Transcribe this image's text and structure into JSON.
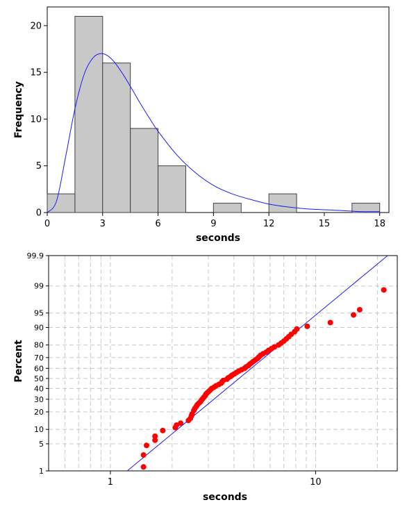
{
  "chart_data": [
    {
      "type": "bar",
      "subtype": "histogram",
      "xlabel": "seconds",
      "ylabel": "Frequency",
      "xlim": [
        0,
        18.5
      ],
      "ylim": [
        0,
        22
      ],
      "xticks": [
        "0",
        "3",
        "6",
        "9",
        "12",
        "15",
        "18"
      ],
      "yticks": [
        "0",
        "5",
        "10",
        "15",
        "20"
      ],
      "bins": [
        {
          "from": 0,
          "to": 1.5,
          "count": 2
        },
        {
          "from": 1.5,
          "to": 3,
          "count": 21
        },
        {
          "from": 3,
          "to": 4.5,
          "count": 16
        },
        {
          "from": 4.5,
          "to": 6,
          "count": 9
        },
        {
          "from": 6,
          "to": 7.5,
          "count": 5
        },
        {
          "from": 7.5,
          "to": 9,
          "count": 0
        },
        {
          "from": 9,
          "to": 10.5,
          "count": 1
        },
        {
          "from": 10.5,
          "to": 12,
          "count": 0
        },
        {
          "from": 12,
          "to": 13.5,
          "count": 2
        },
        {
          "from": 13.5,
          "to": 15,
          "count": 0
        },
        {
          "from": 15,
          "to": 16.5,
          "count": 0
        },
        {
          "from": 16.5,
          "to": 18,
          "count": 1
        }
      ],
      "fitted_curve": {
        "distribution": "lognormal",
        "curve_values": [
          [
            0,
            0
          ],
          [
            0.5,
            1.2
          ],
          [
            1,
            6
          ],
          [
            1.5,
            11.1
          ],
          [
            2,
            14.8
          ],
          [
            2.5,
            16.6
          ],
          [
            3,
            17
          ],
          [
            3.5,
            16.4
          ],
          [
            4,
            15.1
          ],
          [
            4.5,
            13.5
          ],
          [
            5,
            11.8
          ],
          [
            5.5,
            10.2
          ],
          [
            6,
            8.7
          ],
          [
            7,
            6.2
          ],
          [
            8,
            4.3
          ],
          [
            9,
            2.9
          ],
          [
            10,
            2
          ],
          [
            11,
            1.4
          ],
          [
            12,
            0.9
          ],
          [
            13,
            0.6
          ],
          [
            14,
            0.4
          ],
          [
            15,
            0.3
          ],
          [
            16,
            0.2
          ],
          [
            17,
            0.1
          ],
          [
            18,
            0.1
          ]
        ]
      },
      "colors": {
        "bar_fill": "#c8c8c8",
        "bar_stroke": "#404040",
        "curve": "#1a1aff"
      },
      "grid": false
    },
    {
      "type": "scatter",
      "subtype": "lognormal probability plot",
      "xlabel": "seconds",
      "ylabel": "Percent",
      "x_scale": "log",
      "y_scale": "normal probability",
      "xlim": [
        0.5,
        25
      ],
      "ylim": [
        1,
        99.9
      ],
      "xticks": [
        "1",
        "10"
      ],
      "yticks": [
        "1",
        "5",
        "10",
        "20",
        "30",
        "40",
        "50",
        "60",
        "70",
        "80",
        "90",
        "95",
        "99",
        "99.9"
      ],
      "points": [
        [
          1.45,
          1.3
        ],
        [
          1.45,
          2.7
        ],
        [
          1.5,
          4.6
        ],
        [
          1.65,
          6
        ],
        [
          1.65,
          7.3
        ],
        [
          1.8,
          9.5
        ],
        [
          2.07,
          10.8
        ],
        [
          2.1,
          12
        ],
        [
          2.2,
          13
        ],
        [
          2.4,
          14.5
        ],
        [
          2.45,
          15.6
        ],
        [
          2.48,
          17.2
        ],
        [
          2.5,
          18.5
        ],
        [
          2.55,
          21
        ],
        [
          2.58,
          22.5
        ],
        [
          2.62,
          24
        ],
        [
          2.65,
          25.4
        ],
        [
          2.7,
          26.7
        ],
        [
          2.75,
          28
        ],
        [
          2.78,
          29.3
        ],
        [
          2.82,
          30.6
        ],
        [
          2.86,
          32
        ],
        [
          2.9,
          33.3
        ],
        [
          2.92,
          34.6
        ],
        [
          2.97,
          36
        ],
        [
          3.02,
          37.3
        ],
        [
          3.07,
          38.6
        ],
        [
          3.12,
          40
        ],
        [
          3.2,
          41.3
        ],
        [
          3.27,
          42.6
        ],
        [
          3.38,
          44
        ],
        [
          3.47,
          45.3
        ],
        [
          3.5,
          46.6
        ],
        [
          3.55,
          48
        ],
        [
          3.7,
          49.3
        ],
        [
          3.75,
          50.6
        ],
        [
          3.85,
          52
        ],
        [
          3.92,
          53.3
        ],
        [
          4.02,
          54.6
        ],
        [
          4.12,
          56
        ],
        [
          4.22,
          57.3
        ],
        [
          4.35,
          58.6
        ],
        [
          4.5,
          60
        ],
        [
          4.58,
          61.3
        ],
        [
          4.7,
          62.6
        ],
        [
          4.78,
          64
        ],
        [
          4.88,
          65.3
        ],
        [
          4.98,
          66.6
        ],
        [
          5.1,
          68
        ],
        [
          5.22,
          69.3
        ],
        [
          5.3,
          70.6
        ],
        [
          5.4,
          72
        ],
        [
          5.55,
          73.3
        ],
        [
          5.75,
          74.6
        ],
        [
          5.9,
          76
        ],
        [
          6.1,
          77.3
        ],
        [
          6.3,
          78.6
        ],
        [
          6.6,
          80
        ],
        [
          6.8,
          81.3
        ],
        [
          7,
          82.6
        ],
        [
          7.2,
          84
        ],
        [
          7.4,
          85.3
        ],
        [
          7.6,
          86.6
        ],
        [
          7.9,
          88
        ],
        [
          8.1,
          89.3
        ],
        [
          9.1,
          90.5
        ],
        [
          11.8,
          92
        ],
        [
          15.3,
          94.5
        ],
        [
          16.4,
          95.8
        ],
        [
          21.5,
          98.7
        ]
      ],
      "fit_line": [
        [
          0.8,
          0.1
        ],
        [
          25,
          99.95
        ]
      ],
      "colors": {
        "points": "#ff0000",
        "line": "#1a1aff",
        "grid": "#c8c8c8"
      },
      "grid": true
    }
  ]
}
